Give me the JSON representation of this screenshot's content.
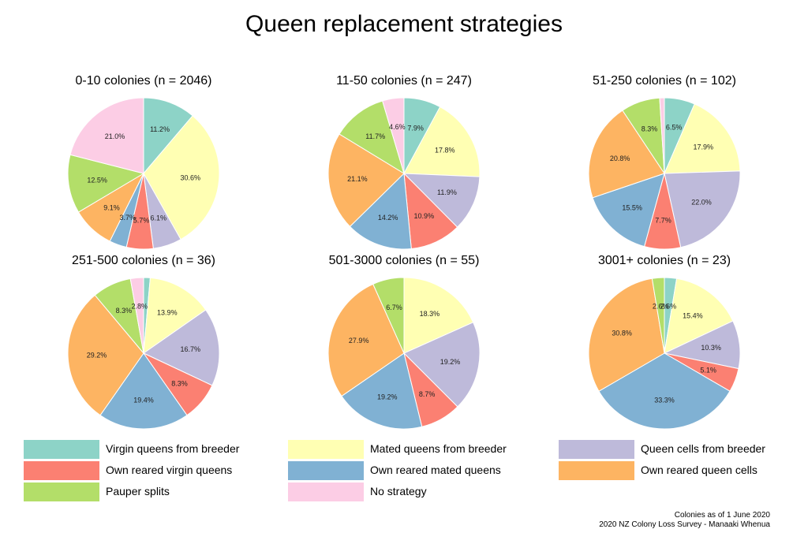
{
  "title": "Queen replacement strategies",
  "colors": {
    "Virgin queens from breeder": "#8dd3c7",
    "Mated queens from breeder": "#ffffb3",
    "Queen cells from breeder": "#bebada",
    "Own reared virgin queens": "#fb8072",
    "Own reared mated queens": "#80b1d3",
    "Own reared queen cells": "#fdb462",
    "Pauper splits": "#b3de69",
    "No strategy": "#fccde5"
  },
  "legend": {
    "items": [
      "Virgin queens from breeder",
      "Mated queens from breeder",
      "Queen cells from breeder",
      "Own reared virgin queens",
      "Own reared mated queens",
      "Own reared queen cells",
      "Pauper splits",
      "No strategy"
    ]
  },
  "footer": {
    "line1": "Colonies as of 1 June 2020",
    "line2": "2020 NZ Colony Loss Survey - Manaaki Whenua"
  },
  "chart_data": [
    {
      "type": "pie",
      "title": "0-10 colonies (n = 2046)",
      "labels": [
        "Virgin queens from breeder",
        "Mated queens from breeder",
        "Queen cells from breeder",
        "Own reared virgin queens",
        "Own reared mated queens",
        "Own reared queen cells",
        "Pauper splits",
        "No strategy"
      ],
      "values": [
        11.2,
        30.6,
        6.1,
        5.7,
        3.7,
        9.1,
        12.5,
        21.0
      ],
      "value_labels": [
        "11.2%",
        "30.6%",
        "6.1%",
        "5.7%",
        "3.7%",
        "9.1%",
        "12.5%",
        "21.0%"
      ]
    },
    {
      "type": "pie",
      "title": "11-50 colonies (n = 247)",
      "labels": [
        "Virgin queens from breeder",
        "Mated queens from breeder",
        "Queen cells from breeder",
        "Own reared virgin queens",
        "Own reared mated queens",
        "Own reared queen cells",
        "Pauper splits",
        "No strategy"
      ],
      "values": [
        7.9,
        17.8,
        11.9,
        10.9,
        14.2,
        21.1,
        11.7,
        4.6
      ],
      "value_labels": [
        "7.9%",
        "17.8%",
        "11.9%",
        "10.9%",
        "14.2%",
        "21.1%",
        "11.7%",
        "4.6%"
      ]
    },
    {
      "type": "pie",
      "title": "51-250 colonies (n = 102)",
      "labels": [
        "Virgin queens from breeder",
        "Mated queens from breeder",
        "Queen cells from breeder",
        "Own reared virgin queens",
        "Own reared mated queens",
        "Own reared queen cells",
        "Pauper splits",
        "No strategy"
      ],
      "values": [
        6.5,
        17.9,
        22.0,
        7.7,
        15.5,
        20.8,
        8.3,
        1.0
      ],
      "value_labels": [
        "6.5%",
        "17.9%",
        "22.0%",
        "7.7%",
        "15.5%",
        "20.8%",
        "8.3%",
        ""
      ]
    },
    {
      "type": "pie",
      "title": "251-500 colonies (n = 36)",
      "labels": [
        "Virgin queens from breeder",
        "Mated queens from breeder",
        "Queen cells from breeder",
        "Own reared virgin queens",
        "Own reared mated queens",
        "Own reared queen cells",
        "Pauper splits",
        "No strategy"
      ],
      "values": [
        1.4,
        13.9,
        16.7,
        8.3,
        19.4,
        29.2,
        8.3,
        2.8
      ],
      "value_labels": [
        "",
        "13.9%",
        "16.7%",
        "8.3%",
        "19.4%",
        "29.2%",
        "8.3%",
        "2.8%"
      ]
    },
    {
      "type": "pie",
      "title": "501-3000 colonies (n = 55)",
      "labels": [
        "Mated queens from breeder",
        "Queen cells from breeder",
        "Own reared virgin queens",
        "Own reared mated queens",
        "Own reared queen cells",
        "Pauper splits"
      ],
      "values": [
        18.3,
        19.2,
        8.7,
        19.2,
        27.9,
        6.7
      ],
      "value_labels": [
        "18.3%",
        "19.2%",
        "8.7%",
        "19.2%",
        "27.9%",
        "6.7%"
      ]
    },
    {
      "type": "pie",
      "title": "3001+ colonies (n = 23)",
      "labels": [
        "Virgin queens from breeder",
        "Mated queens from breeder",
        "Queen cells from breeder",
        "Own reared virgin queens",
        "Own reared mated queens",
        "Own reared queen cells",
        "Pauper splits"
      ],
      "values": [
        2.6,
        15.4,
        10.3,
        5.1,
        33.3,
        30.8,
        2.6
      ],
      "value_labels": [
        "2.6%",
        "15.4%",
        "10.3%",
        "5.1%",
        "33.3%",
        "30.8%",
        "2.6%"
      ]
    }
  ]
}
